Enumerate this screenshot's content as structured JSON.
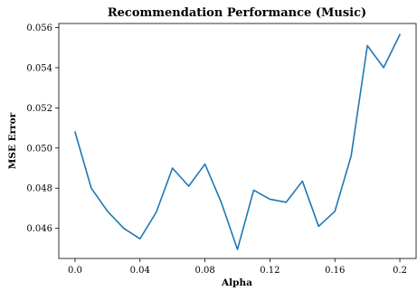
{
  "chart_data": {
    "type": "line",
    "title": "Recommendation Performance (Music)",
    "xlabel": "Alpha",
    "ylabel": "MSE Error",
    "xlim": [
      -0.01,
      0.21
    ],
    "ylim": [
      0.0445,
      0.0562
    ],
    "xticks": [
      0.0,
      0.04,
      0.08,
      0.12,
      0.16,
      0.2
    ],
    "xtick_labels": [
      "0.0",
      "0.04",
      "0.08",
      "0.12",
      "0.16",
      "0.2"
    ],
    "yticks": [
      0.046,
      0.048,
      0.05,
      0.052,
      0.054,
      0.056
    ],
    "ytick_labels": [
      "0.046",
      "0.048",
      "0.050",
      "0.052",
      "0.054",
      "0.056"
    ],
    "grid": false,
    "series": [
      {
        "color": "#1f77b4",
        "x": [
          0.0,
          0.01,
          0.02,
          0.03,
          0.04,
          0.05,
          0.06,
          0.07,
          0.08,
          0.09,
          0.1,
          0.11,
          0.12,
          0.13,
          0.14,
          0.15,
          0.16,
          0.17,
          0.18,
          0.19,
          0.2
        ],
        "y": [
          0.0508,
          0.048,
          0.04685,
          0.046,
          0.04548,
          0.0468,
          0.049,
          0.0481,
          0.0492,
          0.0473,
          0.04495,
          0.0479,
          0.04745,
          0.0473,
          0.04835,
          0.0461,
          0.04685,
          0.0496,
          0.0551,
          0.054,
          0.05565
        ]
      }
    ]
  }
}
